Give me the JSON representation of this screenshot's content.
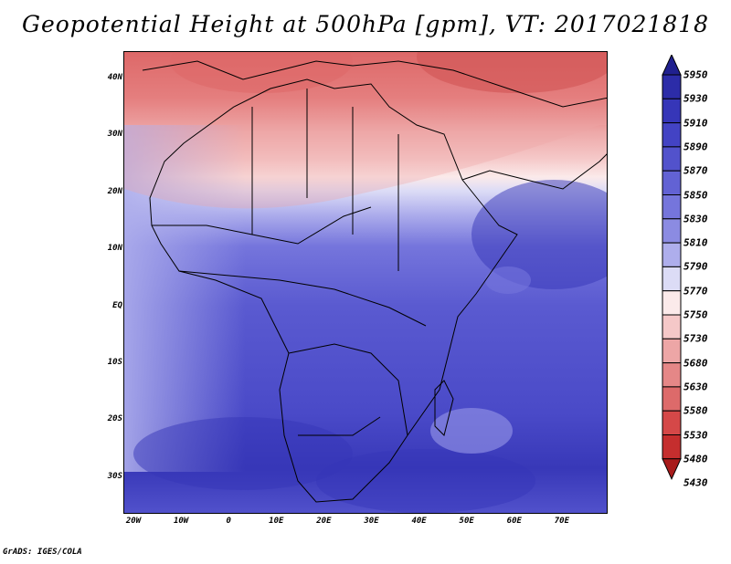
{
  "title": "Geopotential Height at 500hPa [gpm], VT: 2017021818",
  "credit": "GrADS: IGES/COLA",
  "lat_labels": [
    "40N",
    "30N",
    "20N",
    "10N",
    "EQ",
    "10S",
    "20S",
    "30S"
  ],
  "lon_labels": [
    "20W",
    "10W",
    "0",
    "10E",
    "20E",
    "30E",
    "40E",
    "50E",
    "60E",
    "70E"
  ],
  "colorbar": {
    "levels": [
      "5950",
      "5930",
      "5910",
      "5890",
      "5870",
      "5850",
      "5830",
      "5810",
      "5790",
      "5770",
      "5750",
      "5730",
      "5680",
      "5630",
      "5580",
      "5530",
      "5480",
      "5430"
    ],
    "colors": [
      "#20208f",
      "#2c2ca8",
      "#3636b8",
      "#4343c4",
      "#5252cc",
      "#6262d4",
      "#7575dc",
      "#8b8be2",
      "#aeaeec",
      "#dcdcf6",
      "#fbeaea",
      "#f5c8c8",
      "#eda6a6",
      "#e58787",
      "#dd6a6a",
      "#d54848",
      "#c52e2e",
      "#a81b1b"
    ]
  },
  "map": {
    "lon_range": [
      -22,
      80
    ],
    "lat_range": [
      -37,
      45
    ]
  }
}
